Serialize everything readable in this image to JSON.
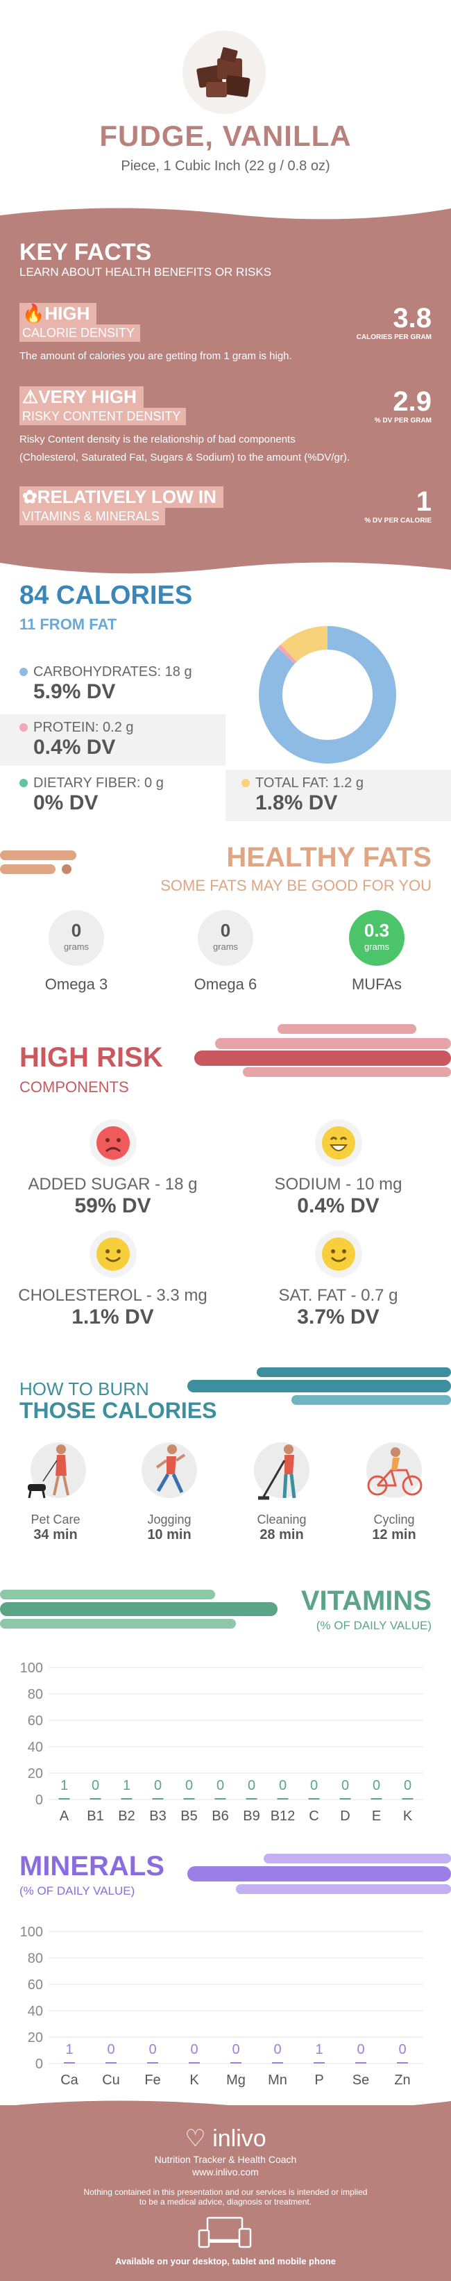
{
  "header": {
    "title": "FUDGE, VANILLA",
    "subtitle": "Piece, 1 Cubic Inch (22 g / 0.8 oz)"
  },
  "key_facts": {
    "title": "KEY FACTS",
    "subtitle": "LEARN ABOUT HEALTH BENEFITS OR RISKS",
    "calorie_density": {
      "level": "HIGH",
      "label": "CALORIE DENSITY",
      "value": "3.8",
      "unit": "CALORIES PER GRAM",
      "description": "The amount of calories you are getting from 1 gram is high."
    },
    "risky_density": {
      "level": "VERY HIGH",
      "label": "RISKY CONTENT DENSITY",
      "value": "2.9",
      "unit": "% DV PER GRAM",
      "description_1": "Risky Content density is the relationship of bad components",
      "description_2": "(Cholesterol, Saturated Fat, Sugars & Sodium) to the amount (%DV/gr)."
    },
    "vitamins_minerals": {
      "level": "RELATIVELY LOW  IN",
      "label": "VITAMINS & MINERALS",
      "value": "1",
      "unit": "% DV PER CALORIE"
    }
  },
  "calories": {
    "total": "84 CALORIES",
    "from_fat": "11 FROM FAT",
    "carbs_label": "CARBOHYDRATES: 18 g",
    "carbs_dv": "5.9% DV",
    "protein_label": "PROTEIN: 0.2 g",
    "protein_dv": "0.4% DV",
    "fiber_label": "DIETARY FIBER: 0 g",
    "fiber_dv": "0% DV",
    "fat_label": "TOTAL FAT: 1.2 g",
    "fat_dv": "1.8% DV",
    "donut": {
      "carbs": 87,
      "protein": 1,
      "fat": 12
    },
    "colors": {
      "carbs": "#8ebbe3",
      "protein": "#f2a6b8",
      "fiber": "#5ec4a2",
      "fat": "#f7d27a"
    }
  },
  "healthy_fats": {
    "title": "HEALTHY FATS",
    "subtitle": "SOME FATS MAY BE GOOD FOR YOU",
    "items": [
      {
        "value": "0",
        "unit": "grams",
        "name": "Omega 3"
      },
      {
        "value": "0",
        "unit": "grams",
        "name": "Omega 6"
      },
      {
        "value": "0.3",
        "unit": "grams",
        "name": "MUFAs"
      }
    ]
  },
  "high_risk": {
    "title": "HIGH RISK",
    "subtitle": "COMPONENTS",
    "items": [
      {
        "label": "ADDED SUGAR - 18 g",
        "dv": "59% DV",
        "face": "sad"
      },
      {
        "label": "SODIUM - 10 mg",
        "dv": "0.4% DV",
        "face": "grin"
      },
      {
        "label": "CHOLESTEROL - 3.3 mg",
        "dv": "1.1% DV",
        "face": "smile"
      },
      {
        "label": "SAT. FAT - 0.7 g",
        "dv": "3.7% DV",
        "face": "smile"
      }
    ]
  },
  "burn": {
    "title_1": "HOW TO BURN",
    "title_2": "THOSE CALORIES",
    "items": [
      {
        "name": "Pet Care",
        "time": "34 min",
        "icon": "walking-dog-icon"
      },
      {
        "name": "Jogging",
        "time": "10 min",
        "icon": "jogging-icon"
      },
      {
        "name": "Cleaning",
        "time": "28 min",
        "icon": "cleaning-icon"
      },
      {
        "name": "Cycling",
        "time": "12 min",
        "icon": "cycling-icon"
      }
    ]
  },
  "vitamins": {
    "title": "VITAMINS",
    "subtitle": "(% OF DAILY VALUE)"
  },
  "minerals": {
    "title": "MINERALS",
    "subtitle": "(% OF DAILY VALUE)"
  },
  "chart_data": [
    {
      "type": "bar",
      "categories": [
        "A",
        "B1",
        "B2",
        "B3",
        "B5",
        "B6",
        "B9",
        "B12",
        "C",
        "D",
        "E",
        "K"
      ],
      "values": [
        1,
        0,
        1,
        0,
        0,
        0,
        0,
        0,
        0,
        0,
        0,
        0
      ],
      "ylim": [
        0,
        100
      ],
      "yticks": [
        0,
        20,
        40,
        60,
        80,
        100
      ],
      "color": "#5aa587"
    },
    {
      "type": "bar",
      "categories": [
        "Ca",
        "Cu",
        "Fe",
        "K",
        "Mg",
        "Mn",
        "P",
        "Se",
        "Zn"
      ],
      "values": [
        1,
        0,
        0,
        0,
        0,
        0,
        1,
        0,
        0
      ],
      "ylim": [
        0,
        100
      ],
      "yticks": [
        0,
        20,
        40,
        60,
        80,
        100
      ],
      "color": "#9b7fe6"
    }
  ],
  "footer": {
    "brand": "inlivo",
    "tagline": "Nutrition Tracker & Health Coach",
    "url": "www.inlivo.com",
    "disclaimer_1": "Nothing contained in this presentation and our services is intended or implied",
    "disclaimer_2": "to be a medical advice, diagnosis or treatment.",
    "available": "Available on your desktop, tablet and mobile phone"
  }
}
